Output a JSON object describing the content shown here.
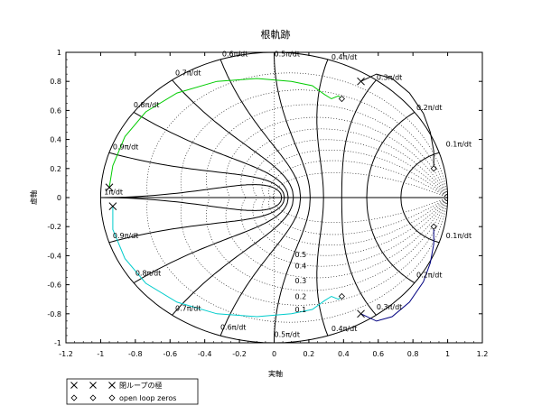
{
  "chart_data": {
    "type": "scatter",
    "title": "根軌跡",
    "xlabel": "実軸",
    "ylabel": "虚軸",
    "xlim": [
      -1.2,
      1.2
    ],
    "ylim": [
      -1,
      1
    ],
    "xticks": [
      "-1.2",
      "-1",
      "-0.8",
      "-0.6",
      "-0.4",
      "-0.2",
      "0",
      "0.2",
      "0.4",
      "0.6",
      "0.8",
      "1",
      "1.2"
    ],
    "yticks": [
      "-1",
      "-0.8",
      "-0.6",
      "-0.4",
      "-0.2",
      "0",
      "0.2",
      "0.4",
      "0.6",
      "0.8",
      "1"
    ],
    "zgrid": {
      "damping_labels": [
        "0.5",
        "0.4",
        "0.3",
        "0.2",
        "0.1"
      ],
      "freq_labels": [
        "0.1π/dt",
        "0.2π/dt",
        "0.3π/dt",
        "0.4π/dt",
        "0.5π/dt",
        "0.6π/dt",
        "0.7π/dt",
        "0.8π/dt",
        "0.9π/dt",
        "1π/dt"
      ]
    },
    "legend": {
      "location": "bottom-left",
      "entries": [
        "閉ループの極",
        "open loop zeros"
      ]
    },
    "series": [
      {
        "name": "閉ループの極",
        "marker": "x",
        "points": [
          [
            0.5,
            0.8
          ],
          [
            0.5,
            -0.8
          ],
          [
            -0.95,
            0.07
          ],
          [
            -0.93,
            -0.06
          ]
        ]
      },
      {
        "name": "open loop zeros",
        "marker": "diamond",
        "points": [
          [
            0.39,
            0.68
          ],
          [
            0.39,
            -0.68
          ],
          [
            0.92,
            0.2
          ],
          [
            0.92,
            -0.2
          ]
        ]
      }
    ],
    "branches": [
      {
        "color": "#000000",
        "points": [
          [
            0.5,
            0.8
          ],
          [
            0.59,
            0.85
          ],
          [
            0.68,
            0.82
          ],
          [
            0.78,
            0.72
          ],
          [
            0.86,
            0.58
          ],
          [
            0.9,
            0.45
          ],
          [
            0.92,
            0.32
          ],
          [
            0.92,
            0.2
          ]
        ]
      },
      {
        "color": "#000080",
        "points": [
          [
            0.5,
            -0.8
          ],
          [
            0.59,
            -0.85
          ],
          [
            0.68,
            -0.82
          ],
          [
            0.78,
            -0.72
          ],
          [
            0.86,
            -0.58
          ],
          [
            0.9,
            -0.45
          ],
          [
            0.92,
            -0.32
          ],
          [
            0.92,
            -0.2
          ]
        ]
      },
      {
        "color": "#00cc00",
        "points": [
          [
            -0.95,
            0.07
          ],
          [
            -0.93,
            0.22
          ],
          [
            -0.86,
            0.42
          ],
          [
            -0.74,
            0.59
          ],
          [
            -0.56,
            0.72
          ],
          [
            -0.33,
            0.8
          ],
          [
            -0.1,
            0.82
          ],
          [
            0.1,
            0.8
          ],
          [
            0.22,
            0.77
          ],
          [
            0.29,
            0.71
          ],
          [
            0.33,
            0.68
          ],
          [
            0.37,
            0.7
          ],
          [
            0.39,
            0.68
          ]
        ]
      },
      {
        "color": "#00cccc",
        "points": [
          [
            -0.93,
            -0.06
          ],
          [
            -0.93,
            -0.22
          ],
          [
            -0.86,
            -0.42
          ],
          [
            -0.74,
            -0.59
          ],
          [
            -0.56,
            -0.72
          ],
          [
            -0.33,
            -0.8
          ],
          [
            -0.1,
            -0.82
          ],
          [
            0.1,
            -0.8
          ],
          [
            0.22,
            -0.77
          ],
          [
            0.29,
            -0.71
          ],
          [
            0.33,
            -0.68
          ],
          [
            0.37,
            -0.7
          ],
          [
            0.39,
            -0.68
          ]
        ]
      }
    ]
  }
}
